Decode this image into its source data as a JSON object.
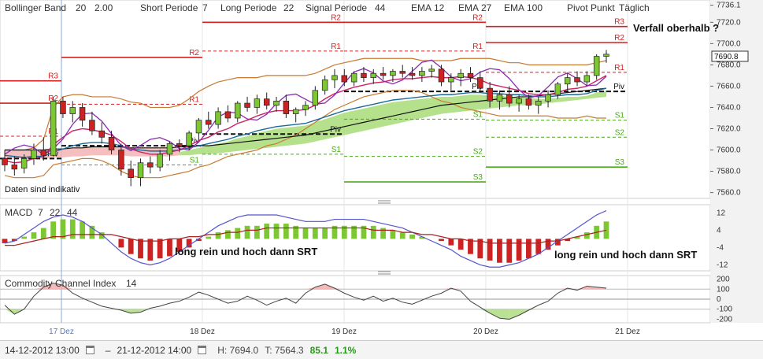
{
  "header": {
    "bollinger_label": "Bollinger Band",
    "bollinger_p1": "20",
    "bollinger_p2": "2.00",
    "short_label": "Short Periode",
    "short_val": "7",
    "long_label": "Long Periode",
    "long_val": "22",
    "signal_label": "Signal Periode",
    "signal_val": "44",
    "ema1_label": "EMA",
    "ema1_val": "12",
    "ema2_label": "EMA",
    "ema2_val": "27",
    "ema3_label": "EMA",
    "ema3_val": "100",
    "pivot_label": "Pivot Punkt",
    "pivot_val": "Täglich"
  },
  "annotations": {
    "verfall": "Verfall oberhalb ?",
    "daten": "Daten sind indikativ",
    "long1": "long rein und hoch dann SRT",
    "long2": "long rein und hoch dann SRT"
  },
  "current_price": "7690.8",
  "macd_label": "MACD",
  "macd_p1": "7",
  "macd_p2": "22",
  "macd_p3": "44",
  "cci_label": "Commodity Channel Index",
  "cci_p": "14",
  "status": {
    "from": "14-12-2012 13:00",
    "to": "21-12-2012 14:00",
    "high": "H: 7694.0",
    "low": "T: 7564.3",
    "change": "85.1",
    "change_pct": "1.1%"
  },
  "colors": {
    "bull": "#7dc832",
    "bear": "#cc2222",
    "resistance": "#d42020",
    "support": "#4aaa18",
    "ema12": "#cc2266",
    "ema27": "#1a6a9a",
    "ema100": "#111111",
    "bollinger": "#c87a30",
    "macd_line": "#5555cc",
    "signal_line": "#aa2222"
  },
  "chart_data": {
    "type": "candlestick",
    "x_ticks": [
      "17 Dez",
      "18 Dez",
      "19 Dez",
      "20 Dez",
      "21 Dez"
    ],
    "price_axis": {
      "ticks": [
        7736.1,
        7720.0,
        7700.0,
        7680.0,
        7660.0,
        7640.0,
        7620.0,
        7600.0,
        7580.0,
        7560.0
      ],
      "range": [
        7556,
        7738
      ]
    },
    "candles": [
      {
        "o": 7592,
        "h": 7600,
        "l": 7580,
        "c": 7586
      },
      {
        "o": 7586,
        "h": 7594,
        "l": 7576,
        "c": 7582
      },
      {
        "o": 7583,
        "h": 7596,
        "l": 7578,
        "c": 7592
      },
      {
        "o": 7592,
        "h": 7606,
        "l": 7586,
        "c": 7600
      },
      {
        "o": 7600,
        "h": 7612,
        "l": 7590,
        "c": 7595
      },
      {
        "o": 7595,
        "h": 7650,
        "l": 7594,
        "c": 7646
      },
      {
        "o": 7646,
        "h": 7650,
        "l": 7630,
        "c": 7634
      },
      {
        "o": 7634,
        "h": 7646,
        "l": 7626,
        "c": 7640
      },
      {
        "o": 7640,
        "h": 7644,
        "l": 7622,
        "c": 7628
      },
      {
        "o": 7628,
        "h": 7636,
        "l": 7614,
        "c": 7618
      },
      {
        "o": 7618,
        "h": 7626,
        "l": 7606,
        "c": 7612
      },
      {
        "o": 7612,
        "h": 7618,
        "l": 7596,
        "c": 7600
      },
      {
        "o": 7600,
        "h": 7606,
        "l": 7576,
        "c": 7582
      },
      {
        "o": 7582,
        "h": 7590,
        "l": 7566,
        "c": 7574
      },
      {
        "o": 7574,
        "h": 7592,
        "l": 7566,
        "c": 7588
      },
      {
        "o": 7588,
        "h": 7594,
        "l": 7578,
        "c": 7584
      },
      {
        "o": 7584,
        "h": 7600,
        "l": 7580,
        "c": 7596
      },
      {
        "o": 7596,
        "h": 7608,
        "l": 7590,
        "c": 7606
      },
      {
        "o": 7606,
        "h": 7610,
        "l": 7598,
        "c": 7604
      },
      {
        "o": 7604,
        "h": 7618,
        "l": 7600,
        "c": 7616
      },
      {
        "o": 7616,
        "h": 7630,
        "l": 7610,
        "c": 7628
      },
      {
        "o": 7628,
        "h": 7636,
        "l": 7620,
        "c": 7624
      },
      {
        "o": 7624,
        "h": 7640,
        "l": 7620,
        "c": 7636
      },
      {
        "o": 7636,
        "h": 7642,
        "l": 7626,
        "c": 7630
      },
      {
        "o": 7630,
        "h": 7646,
        "l": 7626,
        "c": 7644
      },
      {
        "o": 7644,
        "h": 7650,
        "l": 7636,
        "c": 7640
      },
      {
        "o": 7640,
        "h": 7652,
        "l": 7634,
        "c": 7648
      },
      {
        "o": 7648,
        "h": 7654,
        "l": 7638,
        "c": 7642
      },
      {
        "o": 7642,
        "h": 7650,
        "l": 7636,
        "c": 7646
      },
      {
        "o": 7646,
        "h": 7652,
        "l": 7630,
        "c": 7634
      },
      {
        "o": 7634,
        "h": 7640,
        "l": 7626,
        "c": 7638
      },
      {
        "o": 7638,
        "h": 7646,
        "l": 7632,
        "c": 7642
      },
      {
        "o": 7642,
        "h": 7660,
        "l": 7638,
        "c": 7656
      },
      {
        "o": 7656,
        "h": 7670,
        "l": 7652,
        "c": 7666
      },
      {
        "o": 7666,
        "h": 7676,
        "l": 7658,
        "c": 7670
      },
      {
        "o": 7670,
        "h": 7676,
        "l": 7660,
        "c": 7664
      },
      {
        "o": 7664,
        "h": 7674,
        "l": 7660,
        "c": 7672
      },
      {
        "o": 7672,
        "h": 7678,
        "l": 7664,
        "c": 7668
      },
      {
        "o": 7668,
        "h": 7676,
        "l": 7662,
        "c": 7672
      },
      {
        "o": 7672,
        "h": 7678,
        "l": 7666,
        "c": 7670
      },
      {
        "o": 7670,
        "h": 7676,
        "l": 7664,
        "c": 7674
      },
      {
        "o": 7674,
        "h": 7680,
        "l": 7668,
        "c": 7672
      },
      {
        "o": 7672,
        "h": 7678,
        "l": 7666,
        "c": 7670
      },
      {
        "o": 7670,
        "h": 7678,
        "l": 7664,
        "c": 7674
      },
      {
        "o": 7674,
        "h": 7680,
        "l": 7668,
        "c": 7676
      },
      {
        "o": 7676,
        "h": 7680,
        "l": 7660,
        "c": 7664
      },
      {
        "o": 7664,
        "h": 7672,
        "l": 7656,
        "c": 7668
      },
      {
        "o": 7668,
        "h": 7676,
        "l": 7660,
        "c": 7672
      },
      {
        "o": 7672,
        "h": 7678,
        "l": 7664,
        "c": 7668
      },
      {
        "o": 7668,
        "h": 7674,
        "l": 7654,
        "c": 7658
      },
      {
        "o": 7658,
        "h": 7664,
        "l": 7640,
        "c": 7646
      },
      {
        "o": 7646,
        "h": 7656,
        "l": 7638,
        "c": 7652
      },
      {
        "o": 7652,
        "h": 7660,
        "l": 7640,
        "c": 7644
      },
      {
        "o": 7644,
        "h": 7652,
        "l": 7636,
        "c": 7648
      },
      {
        "o": 7648,
        "h": 7652,
        "l": 7638,
        "c": 7642
      },
      {
        "o": 7642,
        "h": 7650,
        "l": 7634,
        "c": 7646
      },
      {
        "o": 7646,
        "h": 7656,
        "l": 7640,
        "c": 7652
      },
      {
        "o": 7652,
        "h": 7664,
        "l": 7648,
        "c": 7662
      },
      {
        "o": 7662,
        "h": 7672,
        "l": 7656,
        "c": 7668
      },
      {
        "o": 7668,
        "h": 7674,
        "l": 7660,
        "c": 7664
      },
      {
        "o": 7664,
        "h": 7674,
        "l": 7660,
        "c": 7670
      },
      {
        "o": 7670,
        "h": 7690,
        "l": 7666,
        "c": 7688
      },
      {
        "o": 7688,
        "h": 7694,
        "l": 7682,
        "c": 7690
      }
    ],
    "bollinger_upper": [
      7600,
      7600,
      7600,
      7602,
      7610,
      7640,
      7650,
      7652,
      7652,
      7650,
      7650,
      7650,
      7648,
      7645,
      7644,
      7640,
      7640,
      7640,
      7642,
      7648,
      7655,
      7660,
      7664,
      7666,
      7668,
      7668,
      7668,
      7670,
      7670,
      7670,
      7670,
      7670,
      7672,
      7676,
      7680,
      7682,
      7684,
      7686,
      7686,
      7686,
      7686,
      7686,
      7686,
      7684,
      7684,
      7684,
      7684,
      7686,
      7686,
      7686,
      7686,
      7684,
      7682,
      7682,
      7680,
      7680,
      7680,
      7680,
      7680,
      7680,
      7680,
      7682,
      7684
    ],
    "bollinger_lower": [
      7576,
      7574,
      7574,
      7574,
      7576,
      7586,
      7588,
      7590,
      7592,
      7592,
      7590,
      7586,
      7580,
      7576,
      7574,
      7574,
      7574,
      7576,
      7578,
      7580,
      7584,
      7586,
      7590,
      7594,
      7596,
      7598,
      7600,
      7604,
      7606,
      7610,
      7614,
      7620,
      7626,
      7632,
      7638,
      7642,
      7646,
      7650,
      7652,
      7654,
      7656,
      7656,
      7656,
      7654,
      7650,
      7646,
      7644,
      7640,
      7638,
      7636,
      7634,
      7632,
      7632,
      7632,
      7632,
      7632,
      7632,
      7630,
      7630,
      7630,
      7632,
      7630,
      7630
    ],
    "ema12": [
      7590,
      7588,
      7589,
      7592,
      7594,
      7605,
      7612,
      7618,
      7620,
      7619,
      7617,
      7614,
      7608,
      7601,
      7598,
      7596,
      7596,
      7598,
      7600,
      7604,
      7609,
      7612,
      7617,
      7620,
      7625,
      7628,
      7632,
      7635,
      7637,
      7637,
      7637,
      7638,
      7642,
      7648,
      7653,
      7656,
      7659,
      7661,
      7663,
      7664,
      7666,
      7667,
      7667,
      7668,
      7669,
      7668,
      7668,
      7669,
      7668,
      7666,
      7662,
      7660,
      7658,
      7656,
      7653,
      7652,
      7652,
      7654,
      7657,
      7658,
      7660,
      7665,
      7670
    ],
    "ema27": [
      7595,
      7594,
      7593,
      7594,
      7594,
      7598,
      7601,
      7604,
      7606,
      7607,
      7607,
      7606,
      7604,
      7601,
      7600,
      7599,
      7599,
      7599,
      7600,
      7602,
      7604,
      7606,
      7608,
      7610,
      7613,
      7615,
      7618,
      7620,
      7622,
      7623,
      7624,
      7625,
      7628,
      7631,
      7634,
      7637,
      7639,
      7641,
      7643,
      7645,
      7647,
      7648,
      7649,
      7650,
      7651,
      7652,
      7652,
      7653,
      7654,
      7654,
      7653,
      7653,
      7652,
      7652,
      7651,
      7650,
      7650,
      7651,
      7652,
      7652,
      7653,
      7656,
      7658
    ],
    "ema100": [
      7600,
      7600,
      7600,
      7600,
      7600,
      7601,
      7601,
      7602,
      7602,
      7603,
      7603,
      7603,
      7603,
      7602,
      7602,
      7602,
      7602,
      7602,
      7603,
      7603,
      7604,
      7604,
      7605,
      7606,
      7607,
      7608,
      7609,
      7610,
      7611,
      7612,
      7613,
      7614,
      7616,
      7618,
      7620,
      7622,
      7624,
      7626,
      7628,
      7630,
      7632,
      7634,
      7636,
      7638,
      7640,
      7642,
      7643,
      7644,
      7645,
      7646,
      7647,
      7648,
      7649,
      7650,
      7650,
      7651,
      7652,
      7653,
      7654,
      7655,
      7656,
      7657,
      7658
    ],
    "pivot_levels": [
      {
        "day": "17 Dez",
        "R3": 7665,
        "R2": 7644,
        "R1": 7613,
        "Piv": 7592,
        "S1": null,
        "S2": null,
        "S3": null
      },
      {
        "day": "18 Dez",
        "R3": null,
        "R2": 7687,
        "R1": 7643,
        "Piv": 7604,
        "S1": 7586,
        "S2": null,
        "S3": null
      },
      {
        "day": "19 Dez",
        "R3": null,
        "R2": 7720,
        "R1": 7693,
        "Piv": 7615,
        "S1": 7596,
        "S2": null,
        "S3": null
      },
      {
        "day": "19 Dez b",
        "R3": null,
        "R2": 7720,
        "R1": 7693,
        "Piv": 7655,
        "S1": 7629,
        "S2": 7594,
        "S3": 7570
      },
      {
        "day": "20 Dez",
        "R3": 7716,
        "R2": 7701,
        "R1": 7673,
        "Piv": 7655,
        "S1": 7628,
        "S2": 7612,
        "S3": 7584
      }
    ],
    "macd_axis": {
      "ticks": [
        12,
        4,
        -4,
        -12
      ],
      "range": [
        -14,
        15
      ]
    },
    "macd_histogram": [
      -2,
      -1,
      1,
      3,
      5,
      8,
      9,
      9,
      8,
      6,
      3,
      0,
      -4,
      -7,
      -9,
      -10,
      -9,
      -8,
      -6,
      -4,
      -1,
      1,
      3,
      4,
      5,
      6,
      6,
      7,
      7,
      7,
      6,
      5,
      5,
      5,
      6,
      6,
      6,
      6,
      6,
      5,
      4,
      3,
      2,
      1,
      0,
      -1,
      -3,
      -5,
      -7,
      -9,
      -10,
      -11,
      -11,
      -10,
      -9,
      -7,
      -5,
      -3,
      -1,
      1,
      3,
      6,
      8
    ],
    "macd_line": [
      -2,
      -1,
      2,
      5,
      8,
      10,
      11,
      10,
      8,
      5,
      2,
      -2,
      -6,
      -9,
      -11,
      -12,
      -11,
      -9,
      -6,
      -3,
      0,
      3,
      6,
      8,
      10,
      11,
      11,
      11,
      11,
      10,
      9,
      8,
      8,
      8,
      9,
      9,
      9,
      9,
      8,
      7,
      6,
      5,
      3,
      1,
      -1,
      -3,
      -5,
      -8,
      -10,
      -12,
      -13,
      -13,
      -12,
      -11,
      -9,
      -7,
      -4,
      -1,
      2,
      5,
      8,
      11,
      13
    ],
    "signal_line": [
      -3,
      -3,
      -2,
      -1,
      0,
      1,
      1,
      2,
      2,
      2,
      2,
      2,
      1,
      0,
      -1,
      -1,
      -1,
      0,
      0,
      1,
      1,
      2,
      2,
      3,
      3,
      4,
      4,
      5,
      5,
      5,
      5,
      5,
      5,
      5,
      5,
      5,
      5,
      5,
      4,
      4,
      4,
      3,
      3,
      2,
      2,
      1,
      0,
      0,
      -1,
      -1,
      -2,
      -2,
      -2,
      -2,
      -2,
      -2,
      -1,
      -1,
      0,
      1,
      2,
      3,
      4
    ],
    "cci_axis": {
      "ticks": [
        200,
        100,
        0,
        -100,
        -200
      ],
      "range": [
        -220,
        220
      ]
    },
    "cci_values": [
      -60,
      -150,
      -100,
      30,
      120,
      160,
      140,
      60,
      10,
      -30,
      -70,
      -90,
      -110,
      -140,
      -130,
      -90,
      -70,
      -40,
      -20,
      20,
      70,
      40,
      0,
      -40,
      -20,
      30,
      -10,
      -60,
      -20,
      10,
      -40,
      60,
      120,
      150,
      110,
      60,
      20,
      -10,
      30,
      -20,
      10,
      -30,
      -50,
      -10,
      30,
      60,
      110,
      80,
      -20,
      -80,
      -140,
      -190,
      -200,
      -160,
      -110,
      -60,
      -20,
      60,
      110,
      90,
      130,
      120,
      110
    ]
  }
}
